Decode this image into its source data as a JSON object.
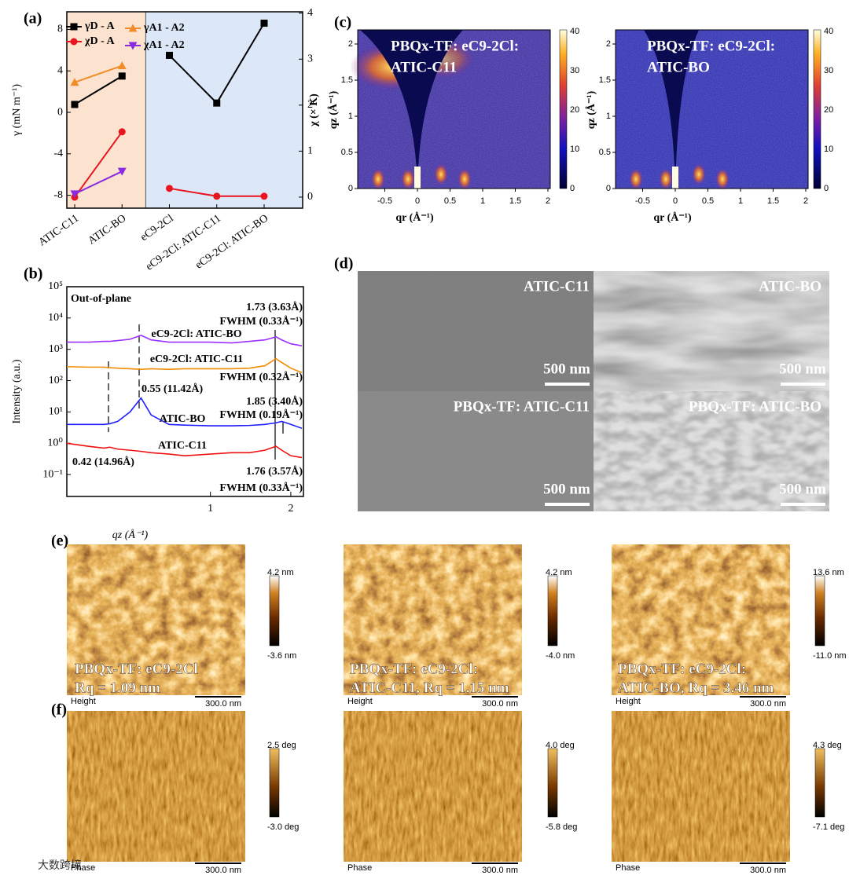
{
  "chart_data": [
    {
      "type": "line",
      "categories": [
        "ATIC-C11",
        "ATIC-BO",
        "eC9-2Cl",
        "eC9-2Cl: ATIC-C11",
        "eC9-2Cl: ATIC-BO"
      ],
      "ylabel": "γ (mN m⁻¹)",
      "ylim": [
        -9.24,
        9.7
      ],
      "yticks": [
        -8,
        -4,
        0,
        4,
        8
      ],
      "y2lim": [
        -0.24,
        4.03
      ],
      "y2ticks": [
        0,
        1,
        2,
        3,
        4
      ],
      "series": [
        {
          "name": "γD - A",
          "color": "#000000",
          "marker": "square",
          "values": [
            0.76,
            3.5,
            5.5,
            0.9,
            8.6
          ]
        },
        {
          "name": "γA1 - A2",
          "color": "#f28c28",
          "marker": "triangle-up",
          "values": [
            2.9,
            4.5,
            null,
            null,
            null
          ]
        },
        {
          "name": "χD - A",
          "color": "#e8141e",
          "marker": "circle",
          "axis": "y2",
          "values": [
            0.0,
            1.42,
            0.19,
            0.02,
            0.02
          ]
        },
        {
          "name": "χA1 - A2",
          "color": "#8a2be2",
          "marker": "triangle-down",
          "axis": "y2",
          "values": [
            0.07,
            0.56,
            null,
            null,
            null
          ]
        }
      ]
    },
    {
      "type": "line",
      "xscale": "log",
      "yscale": "log",
      "xlabel": "qz (Å⁻¹)",
      "ylabel": "Intensity (a.u.)",
      "xlim": [
        0.29,
        2.23
      ],
      "xticks": [
        1,
        2
      ],
      "ylim": [
        0.02,
        100000
      ],
      "yticks": [
        {
          "value": 0.1,
          "label": "10⁻¹"
        },
        {
          "value": 1,
          "label": "10⁰"
        },
        {
          "value": 10,
          "label": "10¹"
        },
        {
          "value": 100,
          "label": "10²"
        },
        {
          "value": 1000,
          "label": "10³"
        },
        {
          "value": 10000,
          "label": "10⁴"
        },
        {
          "value": 100000,
          "label": "10⁵"
        }
      ],
      "x": [
        0.29,
        0.35,
        0.4,
        0.42,
        0.45,
        0.5,
        0.55,
        0.6,
        0.7,
        0.8,
        1.0,
        1.2,
        1.4,
        1.6,
        1.76,
        1.85,
        2.0,
        2.2
      ],
      "series": [
        {
          "name": "eC9-2Cl: ATIC-BO",
          "color": "#9b30ff",
          "values": [
            1700,
            1700,
            1800,
            1800,
            1900,
            2100,
            2800,
            2000,
            1700,
            1700,
            1700,
            1600,
            1800,
            2000,
            2500,
            2000,
            1500,
            1300
          ]
        },
        {
          "name": "eC9-2Cl: ATIC-C11",
          "color": "#f28c00",
          "values": [
            280,
            270,
            270,
            260,
            250,
            240,
            230,
            240,
            230,
            240,
            240,
            240,
            250,
            300,
            500,
            380,
            250,
            180
          ]
        },
        {
          "name": "ATIC-BO",
          "color": "#1f1fff",
          "values": [
            4,
            4,
            4,
            4.2,
            5,
            10,
            28,
            8,
            4,
            3.8,
            3.6,
            3.6,
            3.7,
            4,
            4.5,
            5,
            4,
            3
          ]
        },
        {
          "name": "ATIC-C11",
          "color": "#f01010",
          "values": [
            1.0,
            0.8,
            0.7,
            0.75,
            0.65,
            0.6,
            0.55,
            0.5,
            0.45,
            0.4,
            0.45,
            0.5,
            0.5,
            0.6,
            0.8,
            0.6,
            0.4,
            0.35
          ]
        }
      ],
      "annotations": [
        "Out-of-plane",
        "1.73 (3.63Å)",
        "FWHM (0.33Å⁻¹)",
        "FWHM (0.32Å⁻¹)",
        "0.55 (11.42Å)",
        "1.85 (3.40Å)",
        "FWHM (0.19Å⁻¹)",
        "0.42 (14.96Å)",
        "1.76 (3.57Å)",
        "FWHM (0.33Å⁻¹)"
      ]
    }
  ],
  "panel_labels": [
    "(a)",
    "(b)",
    "(c)",
    "(d)",
    "(e)",
    "(f)"
  ],
  "giwaxs": {
    "xlabel": "qr (Å⁻¹)",
    "ylabel": "qz (Å⁻¹)",
    "chi_label": "χ (× K)",
    "xticks": [
      -0.5,
      0,
      0.5,
      1,
      1.5,
      2
    ],
    "yticks": [
      0,
      0.5,
      1,
      1.5,
      2
    ],
    "colorbar_ticks": [
      0,
      10,
      20,
      30,
      40
    ],
    "titles": [
      [
        "PBQx-TF: eC9-2Cl:",
        "ATIC-C11"
      ],
      [
        "PBQx-TF: eC9-2Cl:",
        "ATIC-BO"
      ]
    ]
  },
  "tem": {
    "labels": [
      "ATIC-C11",
      "ATIC-BO",
      "PBQx-TF: ATIC-C11",
      "PBQx-TF: ATIC-BO"
    ],
    "scale_bar": "500 nm"
  },
  "afm_height": {
    "mode": "Height",
    "scale_bar": "300.0 nm",
    "images": [
      {
        "max": "4.2 nm",
        "min": "-3.6 nm",
        "caption": [
          "PBQx-TF: eC9-2Cl",
          "Rq = 1.09 nm"
        ]
      },
      {
        "max": "4.2 nm",
        "min": "-4.0 nm",
        "caption": [
          "PBQx-TF: eC9-2Cl:",
          "ATIC-C11, Rq = 1.15 nm"
        ]
      },
      {
        "max": "13.6 nm",
        "min": "-11.0 nm",
        "caption": [
          "PBQx-TF: eC9-2Cl:",
          "ATIC-BO, Rq = 3.46 nm"
        ]
      }
    ]
  },
  "afm_phase": {
    "mode": "Phase",
    "scale_bar": "300.0 nm",
    "images": [
      {
        "max": "2.5 deg",
        "min": "-3.0 deg"
      },
      {
        "max": "4.0 deg",
        "min": "-5.8 deg"
      },
      {
        "max": "4.3 deg",
        "min": "-7.1 deg"
      }
    ]
  },
  "watermark": "大数跨境"
}
